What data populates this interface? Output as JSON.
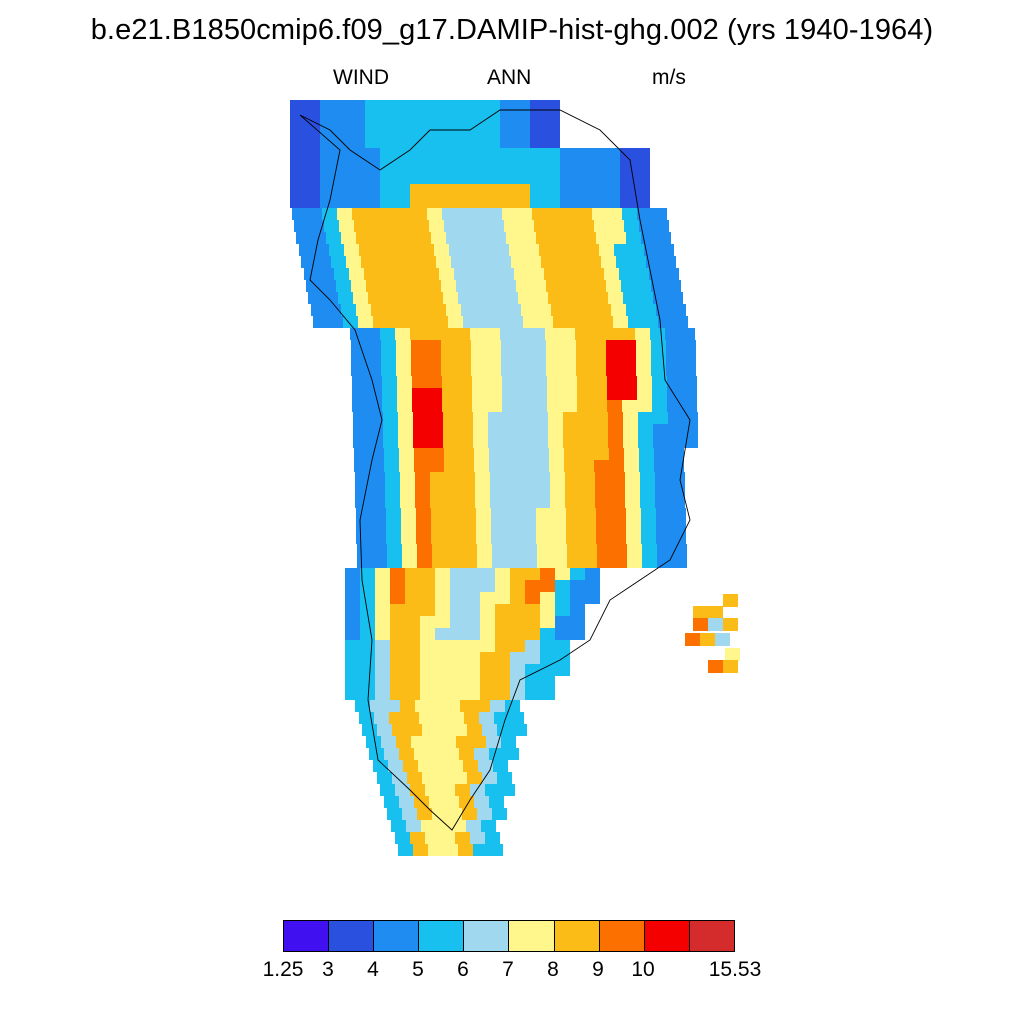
{
  "header": {
    "title": "b.e21.B1850cmip6.f09_g17.DAMIP-hist-ghg.002 (yrs 1940-1964)",
    "variable": "WIND",
    "season": "ANN",
    "units": "m/s"
  },
  "colorbar": {
    "colors": [
      "#4010f0",
      "#2a50e0",
      "#1e8cf0",
      "#18c0f0",
      "#a0d8f0",
      "#fff68c",
      "#fcbc18",
      "#fc7000",
      "#f40000",
      "#d42c2c"
    ],
    "labels": [
      "1.25",
      "3",
      "4",
      "5",
      "6",
      "7",
      "8",
      "9",
      "10",
      "15.53"
    ]
  }
}
